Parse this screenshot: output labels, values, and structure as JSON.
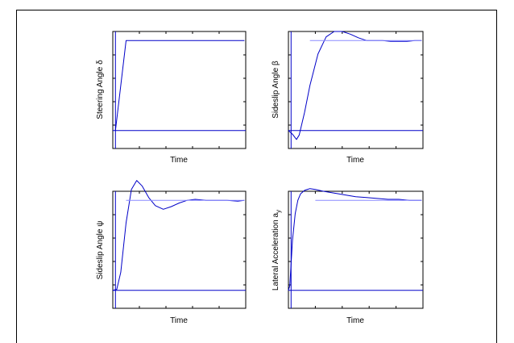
{
  "chart_data": [
    {
      "type": "line",
      "xlabel": "Time",
      "ylabel": "Steering Angle",
      "ylabel_symbol": "δ",
      "xlim": [
        0,
        1
      ],
      "ylim": [
        -0.2,
        1.1
      ],
      "series": [
        {
          "color": "#0000c8",
          "x": [
            0.02,
            0.1,
            0.99
          ],
          "y": [
            0,
            1,
            1
          ]
        },
        {
          "color": "#0000c8",
          "x": [
            0.0,
            1.0
          ],
          "y": [
            0,
            0
          ]
        },
        {
          "color": "#0000c8",
          "x": [
            0.02,
            0.02
          ],
          "y": [
            -0.2,
            1.1
          ]
        }
      ]
    },
    {
      "type": "line",
      "xlabel": "Time",
      "ylabel": "Sideslip Angle",
      "ylabel_symbol": "β",
      "xlim": [
        0,
        1
      ],
      "ylim": [
        -0.2,
        1.1
      ],
      "series": [
        {
          "color": "#0000c8",
          "x": [
            0.0,
            0.03,
            0.06,
            0.08,
            0.12,
            0.16,
            0.22,
            0.28,
            0.34,
            0.4,
            0.46,
            0.52,
            0.58,
            0.64,
            0.7,
            0.76,
            0.82,
            0.88,
            0.94,
            0.99
          ],
          "y": [
            0,
            -0.04,
            -0.1,
            -0.05,
            0.2,
            0.5,
            0.85,
            1.04,
            1.1,
            1.1,
            1.07,
            1.03,
            1.0,
            1.0,
            1.0,
            0.99,
            0.99,
            0.99,
            1.0,
            1.0
          ]
        },
        {
          "color": "#8c8cff",
          "x": [
            0.16,
            0.99
          ],
          "y": [
            1,
            1
          ]
        },
        {
          "color": "#0000c8",
          "x": [
            0.0,
            1.0
          ],
          "y": [
            0,
            0
          ]
        },
        {
          "color": "#0000c8",
          "x": [
            0.02,
            0.02
          ],
          "y": [
            -0.2,
            1.1
          ]
        }
      ]
    },
    {
      "type": "line",
      "xlabel": "Time",
      "ylabel": "Sideslip Angle",
      "ylabel_symbol": "ψ",
      "xlim": [
        0,
        1
      ],
      "ylim": [
        -0.2,
        1.1
      ],
      "series": [
        {
          "color": "#0000c8",
          "x": [
            0.0,
            0.03,
            0.06,
            0.1,
            0.14,
            0.18,
            0.22,
            0.27,
            0.32,
            0.38,
            0.44,
            0.5,
            0.56,
            0.62,
            0.7,
            0.78,
            0.86,
            0.94,
            0.99
          ],
          "y": [
            0,
            0.01,
            0.2,
            0.75,
            1.12,
            1.22,
            1.16,
            1.03,
            0.94,
            0.9,
            0.93,
            0.97,
            1.0,
            1.01,
            1.0,
            1.0,
            1.0,
            0.99,
            1.0
          ]
        },
        {
          "color": "#8c8cff",
          "x": [
            0.1,
            0.99
          ],
          "y": [
            1,
            1
          ]
        },
        {
          "color": "#0000c8",
          "x": [
            0.0,
            1.0
          ],
          "y": [
            0,
            0
          ]
        },
        {
          "color": "#0000c8",
          "x": [
            0.02,
            0.02
          ],
          "y": [
            -0.2,
            1.1
          ]
        }
      ]
    },
    {
      "type": "line",
      "xlabel": "Time",
      "ylabel": "Lateral Acceleration",
      "ylabel_symbol": "a",
      "ylabel_subscript": "y",
      "xlim": [
        0,
        1
      ],
      "ylim": [
        -0.2,
        1.1
      ],
      "series": [
        {
          "color": "#0000c8",
          "x": [
            0.0,
            0.01,
            0.03,
            0.05,
            0.07,
            0.09,
            0.12,
            0.16,
            0.2,
            0.26,
            0.34,
            0.42,
            0.5,
            0.58,
            0.66,
            0.74,
            0.82,
            0.9,
            0.99
          ],
          "y": [
            0,
            0.05,
            0.55,
            0.85,
            1.0,
            1.07,
            1.11,
            1.13,
            1.12,
            1.1,
            1.08,
            1.06,
            1.04,
            1.03,
            1.02,
            1.01,
            1.01,
            1.0,
            1.0
          ]
        },
        {
          "color": "#8c8cff",
          "x": [
            0.2,
            0.99
          ],
          "y": [
            1,
            1
          ]
        },
        {
          "color": "#0000c8",
          "x": [
            0.0,
            1.0
          ],
          "y": [
            0,
            0
          ]
        },
        {
          "color": "#0000c8",
          "x": [
            0.02,
            0.02
          ],
          "y": [
            -0.2,
            1.1
          ]
        }
      ]
    }
  ]
}
